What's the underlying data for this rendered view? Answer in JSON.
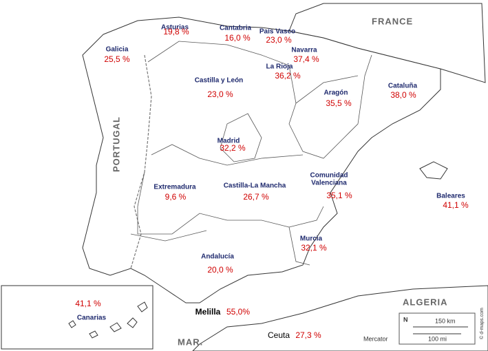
{
  "regions": [
    {
      "name": "Galicia",
      "value": "25,5 %"
    },
    {
      "name": "Asturias",
      "value": "19,8 %"
    },
    {
      "name": "Cantabria",
      "value": "16,0 %"
    },
    {
      "name": "País Vasco",
      "value": "23,0 %"
    },
    {
      "name": "Navarra",
      "value": "37,4 %"
    },
    {
      "name": "La Rioja",
      "value": "36,2 %"
    },
    {
      "name": "Castilla y León",
      "value": "23,0 %"
    },
    {
      "name": "Aragón",
      "value": "35,5 %"
    },
    {
      "name": "Cataluña",
      "value": "38,0 %"
    },
    {
      "name": "Madrid",
      "value": "32,2 %"
    },
    {
      "name": [
        "Comunidad",
        "Valenciana"
      ],
      "value": "35,1 %"
    },
    {
      "name": "Extremadura",
      "value": "9,6 %"
    },
    {
      "name": "Castilla-La Mancha",
      "value": "26,7 %"
    },
    {
      "name": "Baleares",
      "value": "41,1 %"
    },
    {
      "name": "Murcia",
      "value": "32,1 %"
    },
    {
      "name": "Andalucía",
      "value": "20,0 %"
    },
    {
      "name": "Canarias",
      "value": "41,1 %"
    },
    {
      "name": "Melilla",
      "value": "55,0%"
    },
    {
      "name": "Ceuta",
      "value": "27,3 %"
    }
  ],
  "countries": [
    "FRANCE",
    "PORTUGAL",
    "ALGERIA"
  ],
  "sea": "MAR.",
  "scale": {
    "north": "N",
    "km": "150 km",
    "mi": "100 mi"
  },
  "projection": "Mercator",
  "credit": "© d-maps.com"
}
